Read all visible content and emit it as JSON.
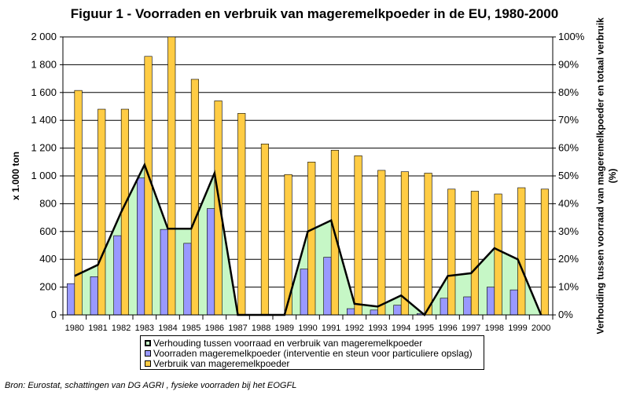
{
  "title": "Figuur 1 - Voorraden en verbruik van mageremelkpoeder in de EU, 1980-2000",
  "source": "Bron: Eurostat, schattingen van DG AGRI , fysieke voorraden bij het EOGFL",
  "colors": {
    "plot_bg": "#ffffff",
    "gridline": "#000000",
    "area_fill": "#c6f7c6",
    "line_stroke": "#000000",
    "stock_bar": "#9999ff",
    "consumption_bar": "#ffcc44"
  },
  "chart_data": {
    "type": "bar",
    "title": "Figuur 1 - Voorraden en verbruik van mageremelkpoeder in de EU, 1980-2000",
    "categories": [
      "1980",
      "1981",
      "1982",
      "1983",
      "1984",
      "1985",
      "1986",
      "1987",
      "1988",
      "1989",
      "1990",
      "1991",
      "1992",
      "1993",
      "1994",
      "1995",
      "1996",
      "1997",
      "1998",
      "1999",
      "2000"
    ],
    "ylabel": "x 1.000 ton",
    "y2label": "Verhouding tussen voorraad van mageremelkpoeder en totaal verbruik (%)",
    "ylim": [
      0,
      2000
    ],
    "y2lim": [
      0,
      100
    ],
    "yticks": [
      "0",
      "200",
      "400",
      "600",
      "800",
      "1 000",
      "1 200",
      "1 400",
      "1 600",
      "1 800",
      "2 000"
    ],
    "y2ticks": [
      "0%",
      "10%",
      "20%",
      "30%",
      "40%",
      "50%",
      "60%",
      "70%",
      "80%",
      "90%",
      "100%"
    ],
    "grid": true,
    "legend_position": "bottom",
    "series": [
      {
        "name": "Verhouding tussen voorraad en verbruik van mageremelkpoeder",
        "type": "area",
        "axis": "right",
        "values": [
          14,
          18,
          37,
          54,
          31,
          31,
          51,
          0,
          0,
          0,
          30,
          34,
          4,
          3,
          7,
          0,
          14,
          15,
          24,
          20,
          0
        ]
      },
      {
        "name": "Voorraden mageremelkpoeder (interventie en steun voor particuliere opslag)",
        "type": "bar",
        "axis": "left",
        "values": [
          225,
          275,
          570,
          985,
          615,
          515,
          765,
          0,
          0,
          0,
          330,
          415,
          45,
          35,
          70,
          10,
          120,
          130,
          200,
          180,
          0
        ]
      },
      {
        "name": "Verbruik van mageremelkpoeder",
        "type": "bar",
        "axis": "left",
        "values": [
          1615,
          1480,
          1480,
          1860,
          2000,
          1695,
          1540,
          1450,
          1230,
          1010,
          1100,
          1185,
          1145,
          1040,
          1030,
          1020,
          905,
          890,
          870,
          915,
          905
        ]
      }
    ]
  }
}
